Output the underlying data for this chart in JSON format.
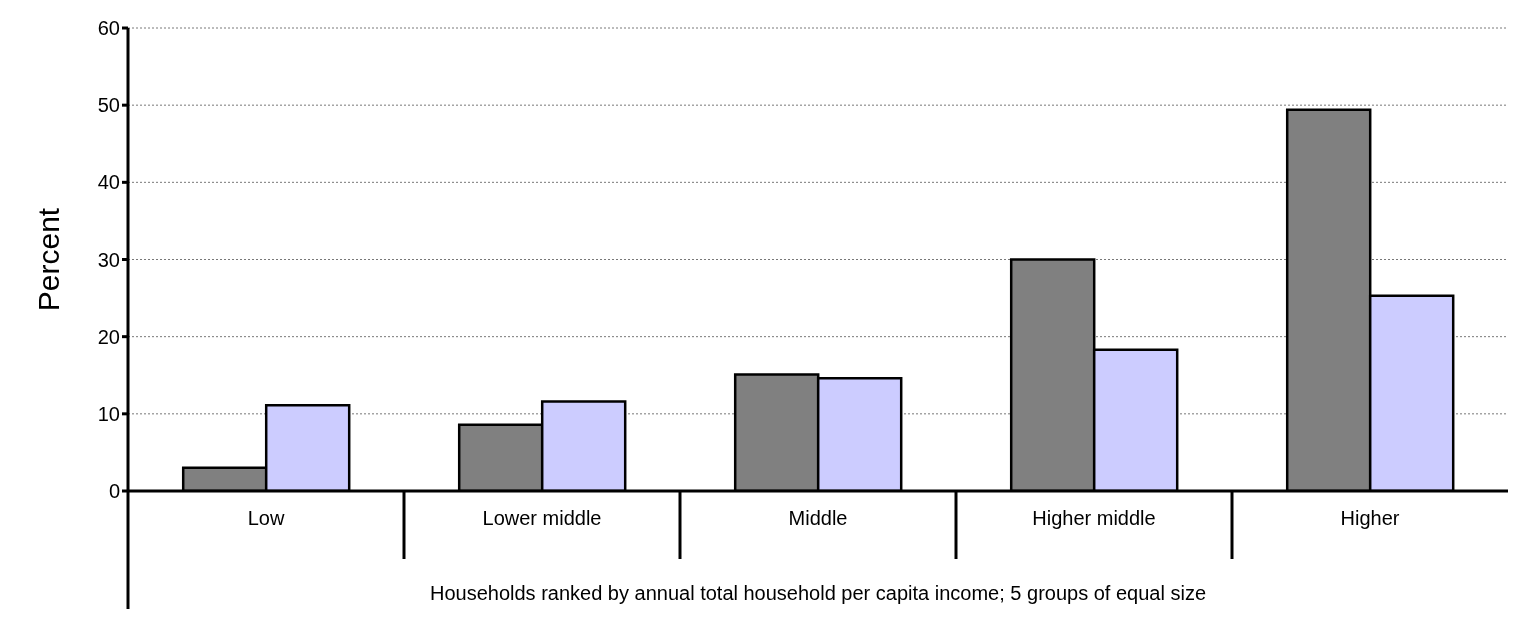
{
  "chart_data": {
    "type": "bar",
    "ylabel": "Percent",
    "xlabel": "Households ranked by annual total household per capita income; 5 groups of equal size",
    "categories": [
      "Low",
      "Lower middle",
      "Middle",
      "Higher middle",
      "Higher"
    ],
    "series": [
      {
        "color": "#808080",
        "values": [
          3.0,
          8.6,
          15.1,
          30.0,
          49.4
        ]
      },
      {
        "color": "#ccccff",
        "values": [
          11.1,
          11.6,
          14.6,
          18.3,
          25.3
        ]
      }
    ],
    "ylim": [
      0,
      60
    ],
    "yticks": [
      0,
      10,
      20,
      30,
      40,
      50,
      60
    ],
    "grid": "y",
    "legend": false
  }
}
